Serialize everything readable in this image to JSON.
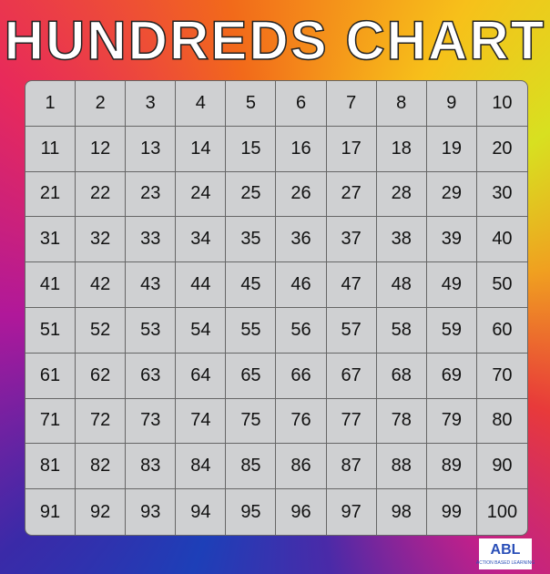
{
  "title": "HUNDREDS CHART",
  "rows": [
    [
      "1",
      "2",
      "3",
      "4",
      "5",
      "6",
      "7",
      "8",
      "9",
      "10"
    ],
    [
      "11",
      "12",
      "13",
      "14",
      "15",
      "16",
      "17",
      "18",
      "19",
      "20"
    ],
    [
      "21",
      "22",
      "23",
      "24",
      "25",
      "26",
      "27",
      "28",
      "29",
      "30"
    ],
    [
      "31",
      "32",
      "33",
      "34",
      "35",
      "36",
      "37",
      "38",
      "39",
      "40"
    ],
    [
      "41",
      "42",
      "43",
      "44",
      "45",
      "46",
      "47",
      "48",
      "49",
      "50"
    ],
    [
      "51",
      "52",
      "53",
      "54",
      "55",
      "56",
      "57",
      "58",
      "59",
      "60"
    ],
    [
      "61",
      "62",
      "63",
      "64",
      "65",
      "66",
      "67",
      "68",
      "69",
      "70"
    ],
    [
      "71",
      "72",
      "73",
      "74",
      "75",
      "76",
      "77",
      "78",
      "79",
      "80"
    ],
    [
      "81",
      "82",
      "83",
      "84",
      "85",
      "86",
      "87",
      "88",
      "89",
      "90"
    ],
    [
      "91",
      "92",
      "93",
      "94",
      "95",
      "96",
      "97",
      "98",
      "99",
      "100"
    ]
  ],
  "logo": {
    "text": "ABL",
    "subtext": "ACTION BASED LEARNING"
  }
}
